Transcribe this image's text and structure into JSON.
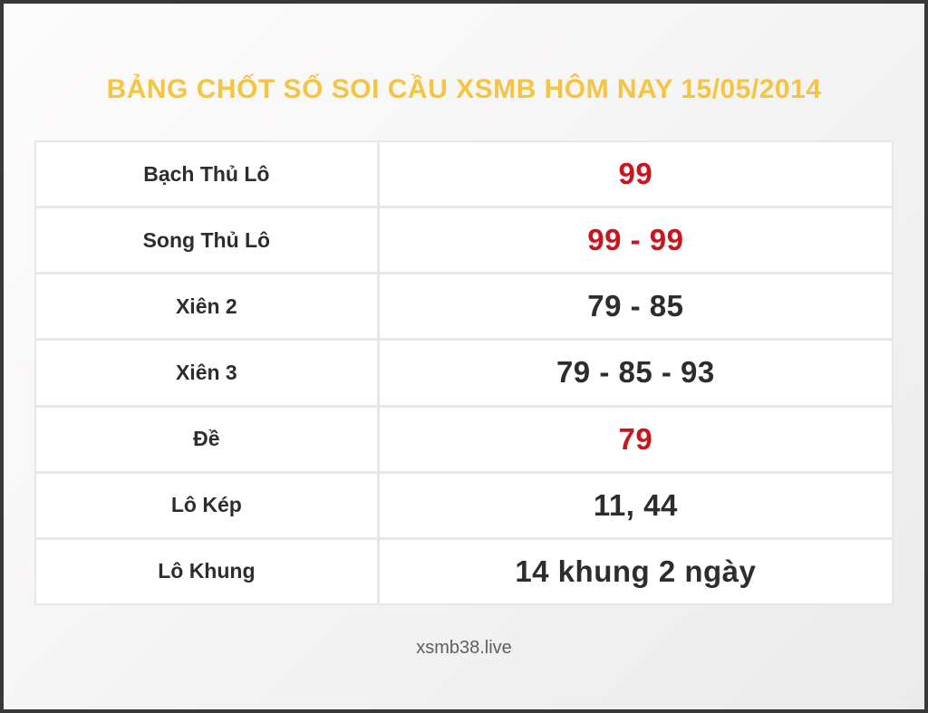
{
  "page": {
    "title": "BẢNG CHỐT SỐ SOI CẦU XSMB HÔM NAY 15/05/2014",
    "footer": "xsmb38.live"
  },
  "colors": {
    "title": "#f6c443",
    "highlight_value": "#c9151c",
    "text": "#2d2d2d",
    "footer": "#5f5f5f",
    "table_border": "#e7e7e7",
    "frame_border": "#383838"
  },
  "table": {
    "rows": [
      {
        "label": "Bạch Thủ Lô",
        "value": "99",
        "highlight": true
      },
      {
        "label": "Song Thủ Lô",
        "value": "99 - 99",
        "highlight": true
      },
      {
        "label": "Xiên 2",
        "value": "79 - 85",
        "highlight": false
      },
      {
        "label": "Xiên 3",
        "value": "79 - 85 - 93",
        "highlight": false
      },
      {
        "label": "Đề",
        "value": "79",
        "highlight": true
      },
      {
        "label": "Lô Kép",
        "value": "11, 44",
        "highlight": false
      },
      {
        "label": "Lô Khung",
        "value": "14 khung 2 ngày",
        "highlight": false
      }
    ]
  }
}
